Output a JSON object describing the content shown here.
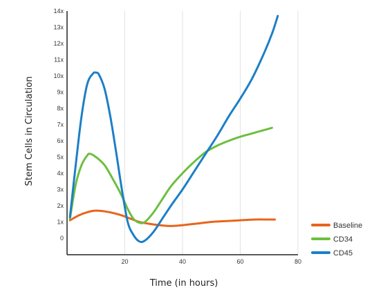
{
  "chart_data": {
    "type": "line",
    "xlabel": "Time (in hours)",
    "ylabel": "Stem Cells in Circulation",
    "xlim": [
      0,
      80
    ],
    "ylim": [
      0,
      14
    ],
    "x_ticks": [
      "20",
      "40",
      "60",
      "80"
    ],
    "x_tick_values": [
      20,
      40,
      60,
      80
    ],
    "y_ticks": [
      "0",
      "1x",
      "2x",
      "3x",
      "4x",
      "5x",
      "6x",
      "7x",
      "8x",
      "9x",
      "10x",
      "11x",
      "12x",
      "13x",
      "14x"
    ],
    "y_tick_values": [
      0,
      1,
      2,
      3,
      4,
      5,
      6,
      7,
      8,
      9,
      10,
      11,
      12,
      13,
      14
    ],
    "grid": "vertical",
    "legend": "bottom-right",
    "series": [
      {
        "name": "Baseline",
        "color": "#e8641b",
        "points": [
          [
            1,
            1.1
          ],
          [
            4,
            1.4
          ],
          [
            7,
            1.6
          ],
          [
            10,
            1.7
          ],
          [
            13,
            1.65
          ],
          [
            16,
            1.55
          ],
          [
            19,
            1.4
          ],
          [
            22,
            1.2
          ],
          [
            25,
            1.0
          ],
          [
            28,
            0.9
          ],
          [
            32,
            0.8
          ],
          [
            36,
            0.75
          ],
          [
            40,
            0.8
          ],
          [
            45,
            0.9
          ],
          [
            50,
            1.0
          ],
          [
            55,
            1.05
          ],
          [
            60,
            1.1
          ],
          [
            65,
            1.15
          ],
          [
            70,
            1.15
          ],
          [
            72,
            1.15
          ]
        ]
      },
      {
        "name": "CD34",
        "color": "#6cbf3f",
        "points": [
          [
            1,
            1.2
          ],
          [
            3,
            3.3
          ],
          [
            5,
            4.5
          ],
          [
            7,
            5.1
          ],
          [
            8,
            5.2
          ],
          [
            10,
            5.0
          ],
          [
            13,
            4.5
          ],
          [
            16,
            3.6
          ],
          [
            19,
            2.6
          ],
          [
            21,
            1.8
          ],
          [
            23,
            1.2
          ],
          [
            25,
            0.95
          ],
          [
            27,
            1.0
          ],
          [
            30,
            1.6
          ],
          [
            33,
            2.4
          ],
          [
            36,
            3.2
          ],
          [
            40,
            4.0
          ],
          [
            44,
            4.7
          ],
          [
            48,
            5.3
          ],
          [
            52,
            5.7
          ],
          [
            56,
            6.0
          ],
          [
            60,
            6.25
          ],
          [
            64,
            6.45
          ],
          [
            68,
            6.65
          ],
          [
            71,
            6.8
          ]
        ]
      },
      {
        "name": "CD45",
        "color": "#1b7fc6",
        "points": [
          [
            1,
            1.3
          ],
          [
            3,
            4.5
          ],
          [
            5,
            7.5
          ],
          [
            7,
            9.5
          ],
          [
            9,
            10.15
          ],
          [
            10,
            10.2
          ],
          [
            11,
            10.1
          ],
          [
            13,
            9.2
          ],
          [
            15,
            7.5
          ],
          [
            17,
            5.3
          ],
          [
            19,
            3.0
          ],
          [
            21,
            1.0
          ],
          [
            23,
            0.2
          ],
          [
            25,
            -0.2
          ],
          [
            27,
            -0.15
          ],
          [
            30,
            0.4
          ],
          [
            33,
            1.2
          ],
          [
            36,
            2.0
          ],
          [
            40,
            3.0
          ],
          [
            44,
            4.1
          ],
          [
            48,
            5.2
          ],
          [
            52,
            6.3
          ],
          [
            56,
            7.5
          ],
          [
            60,
            8.6
          ],
          [
            64,
            9.8
          ],
          [
            68,
            11.3
          ],
          [
            71,
            12.6
          ],
          [
            73,
            13.7
          ]
        ]
      }
    ]
  }
}
